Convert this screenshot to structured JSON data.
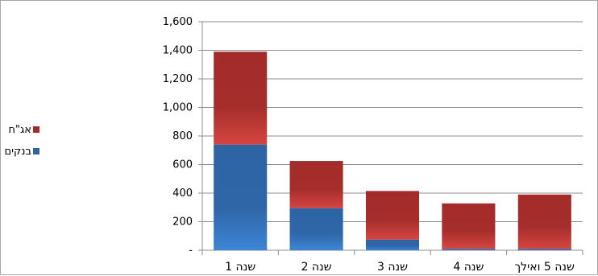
{
  "chart_data": {
    "type": "bar",
    "stacked": true,
    "direction": "rtl",
    "categories": [
      "שנה 1",
      "שנה 2",
      "שנה 3",
      "שנה 4",
      "שנה 5 ואילך"
    ],
    "series": [
      {
        "name": "בנקים ומוסדיים",
        "values": [
          740,
          295,
          75,
          10,
          10
        ]
      },
      {
        "name": "אג\"ח",
        "values": [
          650,
          330,
          340,
          318,
          380
        ]
      }
    ],
    "colors": {
      "בנקים ומוסדיים": "#2e64a4",
      "אג\"ח": "#a32c2a"
    },
    "ylim": [
      0,
      1600
    ],
    "yticks": [
      0,
      200,
      400,
      600,
      800,
      1000,
      1200,
      1400,
      1600
    ],
    "ytick_labels": [
      "-",
      "200",
      "400",
      "600",
      "800",
      "1,000",
      "1,200",
      "1,400",
      "1,600"
    ],
    "grid": true,
    "legend_position": "left",
    "legend": [
      {
        "name": "אג\"ח",
        "color": "#a32c2a"
      },
      {
        "name": "בנקים ומוסדיים",
        "color": "#2e64a4"
      }
    ]
  }
}
